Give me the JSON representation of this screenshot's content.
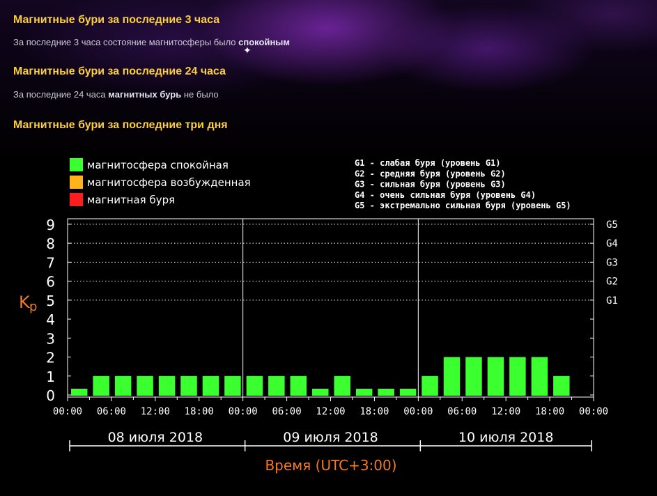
{
  "sections": [
    {
      "heading": "Магнитные бури за последние 3 часа",
      "text_before": "За последние 3 часа состояние магнитосферы было ",
      "text_bold": "спокойным",
      "text_after": ""
    },
    {
      "heading": "Магнитные бури за последние 24 часа",
      "text_before": "За последние 24 часа ",
      "text_bold": "магнитных бурь",
      "text_after": " не было"
    },
    {
      "heading": "Магнитные бури за последние три дня"
    }
  ],
  "colors": {
    "quiet": "#3cff30",
    "excited": "#ffb21a",
    "storm": "#ff1d1d",
    "heading": "#fccf3c",
    "axis_label": "#f07a26"
  },
  "chart_data": {
    "type": "bar",
    "legend": [
      {
        "label": "магнитосфера спокойная",
        "color": "#3cff30"
      },
      {
        "label": "магнитосфера возбужденная",
        "color": "#ffb21a"
      },
      {
        "label": "магнитная буря",
        "color": "#ff1d1d"
      }
    ],
    "g_scale_legend": [
      "G1 - слабая буря (уровень G1)",
      "G2 - средняя буря (уровень G2)",
      "G3 - сильная буря (уровень G3)",
      "G4 - очень сильная буря (уровень G4)",
      "G5 - экстремально сильная буря (уровень G5)"
    ],
    "ylabel": "Kp",
    "xlabel": "Время (UTC+3:00)",
    "ylim": [
      0,
      9
    ],
    "y_ticks": [
      "0",
      "1",
      "2",
      "3",
      "4",
      "5",
      "6",
      "7",
      "8",
      "9"
    ],
    "g_levels": [
      {
        "label": "G1",
        "kp": 5
      },
      {
        "label": "G2",
        "kp": 6
      },
      {
        "label": "G3",
        "kp": 7
      },
      {
        "label": "G4",
        "kp": 8
      },
      {
        "label": "G5",
        "kp": 9
      }
    ],
    "days": [
      "08 июля 2018",
      "09 июля 2018",
      "10 июля 2018"
    ],
    "x_ticks": [
      "00:00",
      "06:00",
      "12:00",
      "18:00",
      "00:00",
      "06:00",
      "12:00",
      "18:00",
      "00:00",
      "06:00",
      "12:00",
      "18:00",
      "00:00"
    ],
    "values": [
      0.33,
      1,
      1,
      1,
      1,
      1,
      1,
      1,
      1,
      1,
      1,
      0.33,
      1,
      0.33,
      0.33,
      0.33,
      1,
      2,
      2,
      2,
      2,
      2,
      1
    ]
  }
}
